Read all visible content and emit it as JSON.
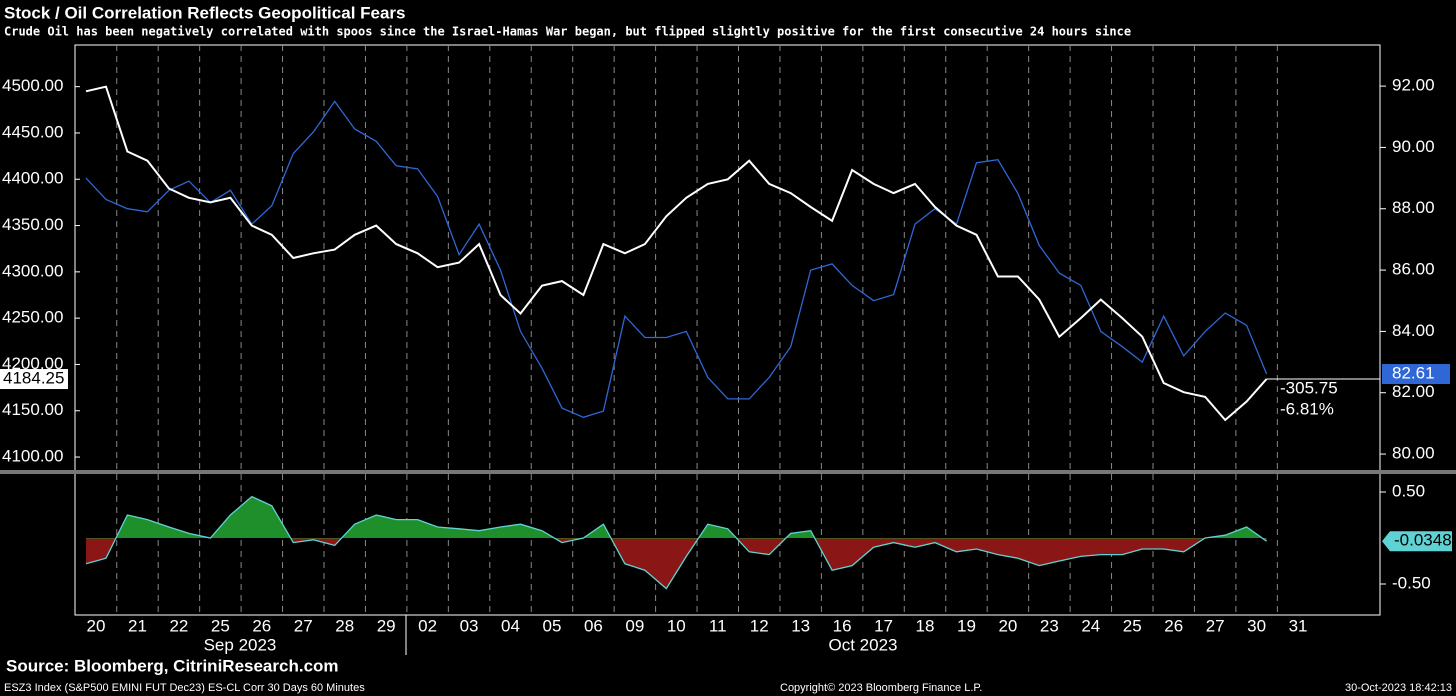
{
  "chart_data": {
    "type": "line",
    "title": "Stock / Oil Correlation Reflects Geopolitical Fears",
    "subtitle": "Crude Oil has been negatively correlated with spoos since the Israel-Hamas War began, but flipped slightly positive for the first consecutive 24 hours since",
    "categories": [
      "20",
      null,
      "21",
      null,
      "22",
      null,
      "25",
      null,
      "26",
      null,
      "27",
      null,
      "28",
      null,
      "29",
      null,
      "02",
      null,
      "03",
      null,
      "04",
      null,
      "05",
      null,
      "06",
      null,
      "09",
      null,
      "10",
      null,
      "11",
      null,
      "12",
      null,
      "13",
      null,
      "16",
      null,
      "17",
      null,
      "18",
      null,
      "19",
      null,
      "20",
      null,
      "23",
      null,
      "24",
      null,
      "25",
      null,
      "26",
      null,
      "27",
      null,
      "30",
      null,
      "31",
      null
    ],
    "x_groups": [
      "Sep 2023",
      "Oct 2023"
    ],
    "series": [
      {
        "color": "#ffffff",
        "values": [
          4495,
          4500,
          4430,
          4420,
          4390,
          4380,
          4375,
          4380,
          4350,
          4340,
          4315,
          4320,
          4324,
          4340,
          4350,
          4330,
          4320,
          4305,
          4310,
          4330,
          4275,
          4255,
          4285,
          4290,
          4275,
          4330,
          4320,
          4330,
          4360,
          4380,
          4395,
          4400,
          4420,
          4395,
          4385,
          4370,
          4355,
          4410,
          4395,
          4385,
          4395,
          4370,
          4350,
          4340,
          4295,
          4295,
          4270,
          4230,
          4250,
          4270,
          4250,
          4230,
          4180,
          4170,
          4165,
          4140,
          4160,
          4184.25,
          null,
          null
        ]
      },
      {
        "color": "#2f67d6",
        "axis": "y2",
        "values": [
          89.0,
          88.3,
          88.0,
          87.9,
          88.6,
          88.9,
          88.2,
          88.6,
          87.5,
          88.1,
          89.8,
          90.5,
          91.5,
          90.6,
          90.2,
          89.4,
          89.3,
          88.4,
          86.5,
          87.5,
          86.0,
          84.0,
          82.8,
          81.5,
          81.2,
          81.4,
          84.5,
          83.8,
          83.8,
          84.0,
          82.5,
          81.8,
          81.8,
          82.5,
          83.5,
          86.0,
          86.2,
          85.5,
          85.0,
          85.2,
          87.5,
          88.0,
          87.5,
          89.5,
          89.6,
          88.5,
          86.8,
          85.9,
          85.5,
          84.0,
          83.5,
          83.0,
          84.5,
          83.2,
          84.0,
          84.6,
          84.2,
          82.61,
          null,
          null
        ]
      }
    ],
    "ylim": [
      4086,
      4545
    ],
    "yticks": [
      {
        "value": 4100,
        "label": "4100.00"
      },
      {
        "value": 4150,
        "label": "4150.00"
      },
      {
        "value": 4200,
        "label": "4200.00"
      },
      {
        "value": 4250,
        "label": "4250.00"
      },
      {
        "value": 4300,
        "label": "4300.00"
      },
      {
        "value": 4350,
        "label": "4350.00"
      },
      {
        "value": 4400,
        "label": "4400.00"
      },
      {
        "value": 4450,
        "label": "4450.00"
      },
      {
        "value": 4500,
        "label": "4500.00"
      }
    ],
    "y2lim": [
      79.48,
      93.34
    ],
    "y2ticks": [
      {
        "value": 80,
        "label": "80.00"
      },
      {
        "value": 82,
        "label": "82.00"
      },
      {
        "value": 84,
        "label": "84.00"
      },
      {
        "value": 86,
        "label": "86.00"
      },
      {
        "value": 88,
        "label": "88.00"
      },
      {
        "value": 90,
        "label": "90.00"
      },
      {
        "value": 92,
        "label": "92.00"
      }
    ],
    "annotations": [
      "-305.75",
      "-6.81%"
    ],
    "lower_panel": {
      "type": "area",
      "series": [
        {
          "color": "#5fd3d3",
          "positive_color": "#1f8f2c",
          "negative_color": "#8a1616",
          "values": [
            -0.28,
            -0.22,
            0.25,
            0.2,
            0.12,
            0.05,
            0.0,
            0.25,
            0.45,
            0.35,
            -0.05,
            -0.02,
            -0.08,
            0.15,
            0.25,
            0.2,
            0.2,
            0.12,
            0.1,
            0.08,
            0.12,
            0.15,
            0.08,
            -0.05,
            0.0,
            0.15,
            -0.28,
            -0.35,
            -0.55,
            -0.2,
            0.15,
            0.1,
            -0.15,
            -0.18,
            0.05,
            0.08,
            -0.35,
            -0.3,
            -0.1,
            -0.05,
            -0.1,
            -0.05,
            -0.15,
            -0.12,
            -0.18,
            -0.22,
            -0.3,
            -0.25,
            -0.2,
            -0.18,
            -0.18,
            -0.12,
            -0.12,
            -0.15,
            0.0,
            0.03,
            0.12,
            -0.0348,
            null,
            null
          ]
        }
      ],
      "ylim": [
        -0.837,
        0.685
      ],
      "yticks": [
        {
          "value": -0.5,
          "label": "-0.50"
        },
        {
          "value": 0.5,
          "label": "0.50"
        }
      ]
    },
    "source": "Source: Bloomberg, CitriniResearch.com",
    "footer_left": "ESZ3 Index (S&P500 EMINI FUT  Dec23) ES-CL Corr 30 Days 60 Minutes",
    "copyright": "Copyright© 2023 Bloomberg Finance L.P.",
    "timestamp": "30-Oct-2023 18:42:13"
  }
}
